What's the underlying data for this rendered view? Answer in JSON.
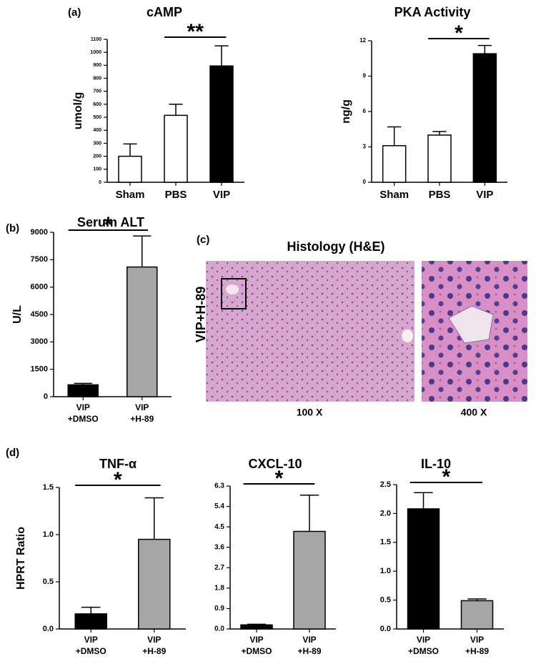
{
  "figure": {
    "panel_labels": [
      "(a)",
      "(b)",
      "(c)",
      "(d)"
    ],
    "histology": {
      "title": "Histology (H&E)",
      "row_label": "VIP+H-89",
      "left_caption": "100 X",
      "right_caption": "400 X"
    }
  },
  "chart_data": [
    {
      "type": "bar",
      "title": "cAMP",
      "y_label": "umol/g",
      "categories": [
        "Sham",
        "PBS",
        "VIP"
      ],
      "values": [
        200,
        515,
        895
      ],
      "errors": [
        95,
        85,
        155
      ],
      "colors": [
        "#ffffff",
        "#ffffff",
        "#000000"
      ],
      "ylim": [
        0,
        1100
      ],
      "yticks": [
        0,
        100,
        200,
        300,
        400,
        500,
        600,
        700,
        800,
        900,
        1000,
        1100
      ],
      "significance": {
        "text": "**",
        "from": "PBS",
        "to": "VIP"
      }
    },
    {
      "type": "bar",
      "title": "PKA Activity",
      "y_label": "ng/g",
      "categories": [
        "Sham",
        "PBS",
        "VIP"
      ],
      "values": [
        3.1,
        4.0,
        10.9
      ],
      "errors": [
        1.6,
        0.3,
        0.7
      ],
      "colors": [
        "#ffffff",
        "#ffffff",
        "#000000"
      ],
      "ylim": [
        0,
        12
      ],
      "yticks": [
        0,
        3,
        6,
        9,
        12
      ],
      "significance": {
        "text": "*",
        "from": "PBS",
        "to": "VIP"
      }
    },
    {
      "type": "bar",
      "title": "Serum ALT",
      "y_label": "U/L",
      "categories": [
        [
          "VIP",
          "+DMSO"
        ],
        [
          "VIP",
          "+H-89"
        ]
      ],
      "values": [
        650,
        7100
      ],
      "errors": [
        80,
        1700
      ],
      "colors": [
        "#000000",
        "#a6a6a6"
      ],
      "ylim": [
        0,
        9000
      ],
      "yticks": [
        0,
        1500,
        3000,
        4500,
        6000,
        7500,
        9000
      ],
      "significance": {
        "text": "*",
        "from": 0,
        "to": 1
      }
    },
    {
      "type": "bar",
      "title": "TNF-α",
      "y_label": "HPRT Ratio",
      "categories": [
        [
          "VIP",
          "+DMSO"
        ],
        [
          "VIP",
          "+H-89"
        ]
      ],
      "values": [
        0.16,
        0.95
      ],
      "errors": [
        0.07,
        0.44
      ],
      "colors": [
        "#000000",
        "#a6a6a6"
      ],
      "ylim": [
        0,
        1.5
      ],
      "yticks": [
        {
          "value": 0,
          "label": "0.0"
        },
        0.5,
        {
          "value": 1,
          "label": "1.0"
        },
        1.5
      ],
      "significance": {
        "text": "*",
        "from": 0,
        "to": 1
      }
    },
    {
      "type": "bar",
      "title": "CXCL-10",
      "categories": [
        [
          "VIP",
          "+DMSO"
        ],
        [
          "VIP",
          "+H-89"
        ]
      ],
      "values": [
        0.18,
        4.3
      ],
      "errors": [
        0.03,
        1.6
      ],
      "colors": [
        "#000000",
        "#a6a6a6"
      ],
      "ylim": [
        0,
        6.3
      ],
      "yticks": [
        {
          "value": 0,
          "label": "0.0"
        },
        0.9,
        1.8,
        2.7,
        3.6,
        4.5,
        5.4,
        6.3
      ],
      "significance": {
        "text": "*",
        "from": 0,
        "to": 1
      }
    },
    {
      "type": "bar",
      "title": "IL-10",
      "categories": [
        [
          "VIP",
          "+DMSO"
        ],
        [
          "VIP",
          "+H-89"
        ]
      ],
      "values": [
        2.08,
        0.49
      ],
      "errors": [
        0.28,
        0.03
      ],
      "colors": [
        "#000000",
        "#a6a6a6"
      ],
      "ylim": [
        0,
        2.5
      ],
      "yticks": [
        {
          "value": 0,
          "label": "0.0"
        },
        0.5,
        {
          "value": 1,
          "label": "1.0"
        },
        1.5,
        {
          "value": 2,
          "label": "2.0"
        },
        2.5
      ],
      "significance": {
        "text": "*",
        "from": 0,
        "to": 1
      }
    }
  ]
}
